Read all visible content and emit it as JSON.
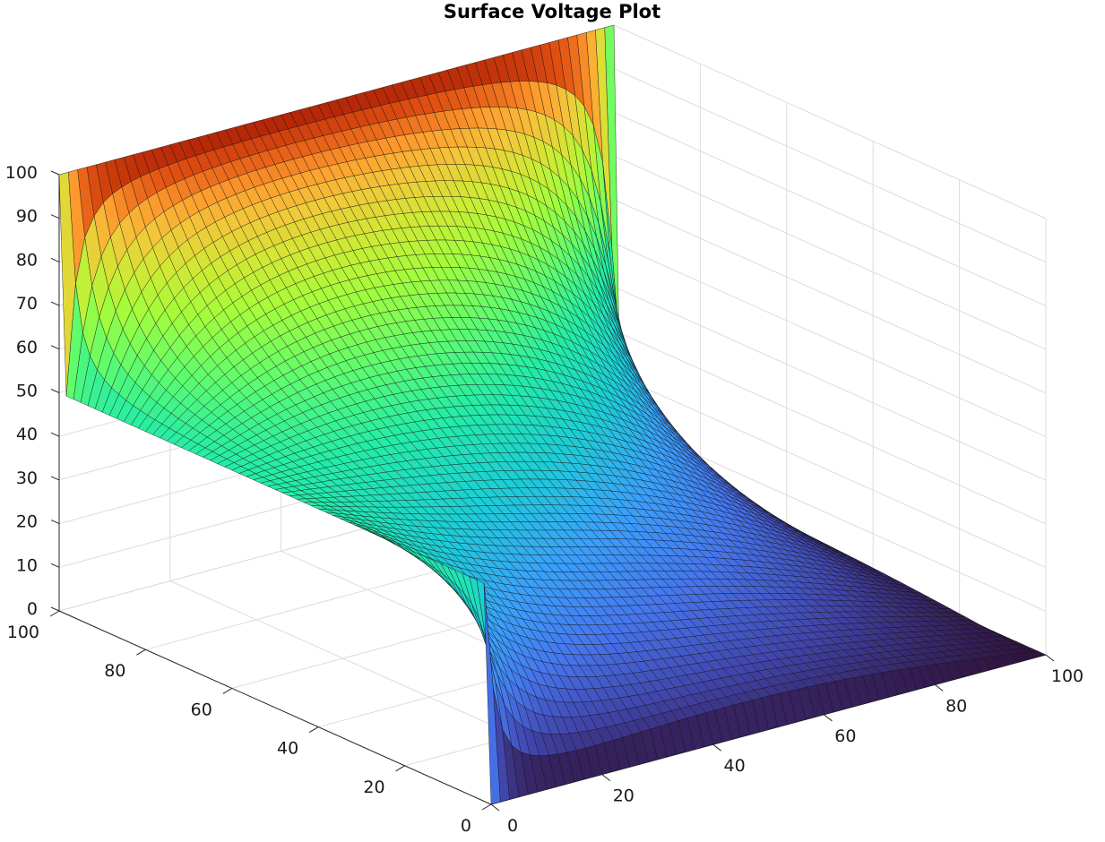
{
  "chart_data": {
    "type": "surface",
    "title": "Surface Voltage Plot",
    "xlabel": "",
    "ylabel": "",
    "zlabel": "",
    "xlim": [
      0,
      100
    ],
    "ylim": [
      0,
      100
    ],
    "zlim": [
      0,
      100
    ],
    "x_ticks": [
      "0",
      "20",
      "40",
      "60",
      "80",
      "100"
    ],
    "y_ticks": [
      "0",
      "20",
      "40",
      "60",
      "80",
      "100"
    ],
    "z_ticks": [
      "0",
      "10",
      "20",
      "30",
      "40",
      "50",
      "60",
      "70",
      "80",
      "90",
      "100"
    ],
    "grid": true,
    "colormap": "turbo",
    "boundary_conditions": {
      "y_max_edge": 100,
      "x_zero_edge": 50,
      "y_zero_edge": 0,
      "x_max_edge": 0
    }
  }
}
